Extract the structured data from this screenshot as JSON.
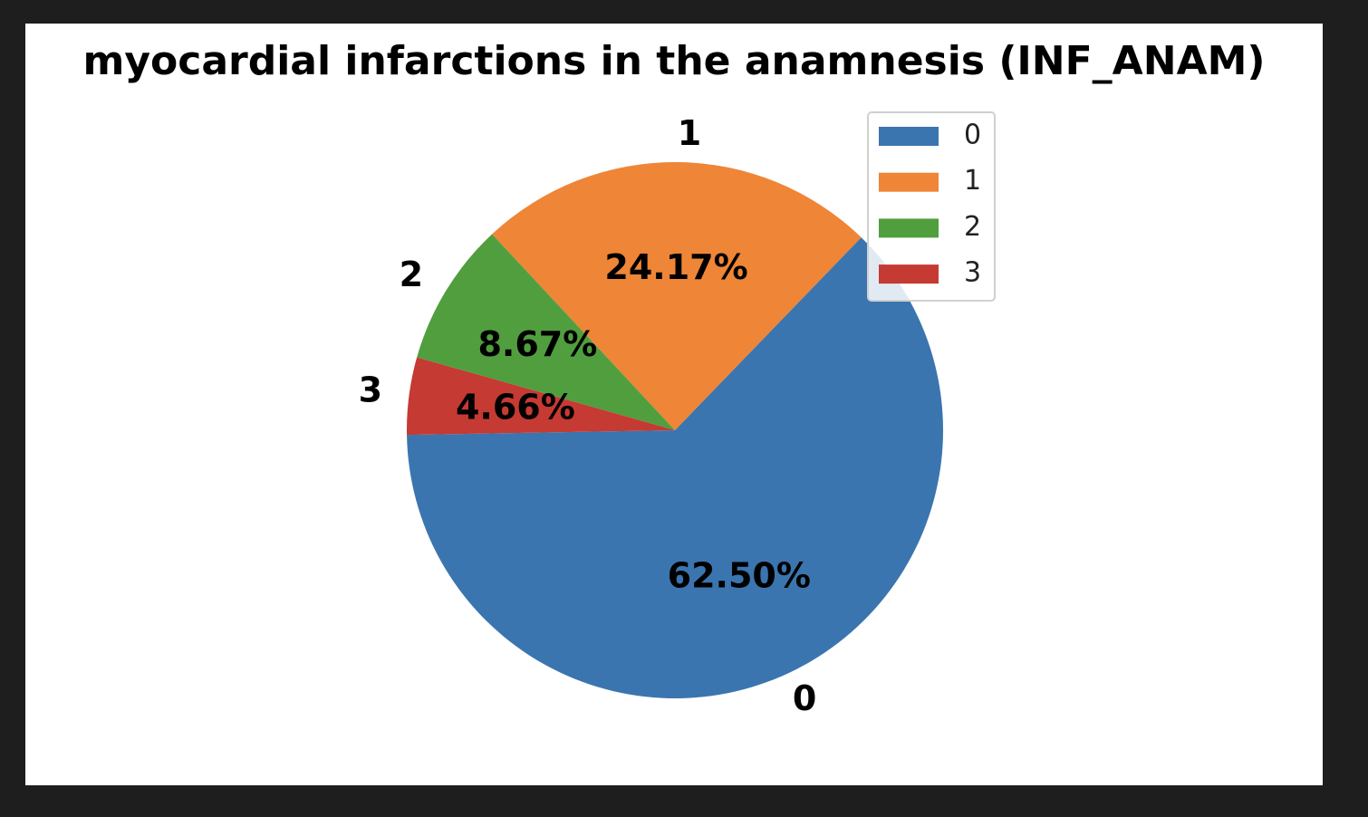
{
  "chart_data": {
    "type": "pie",
    "title": "myocardial infarctions in the anamnesis (INF_ANAM)",
    "categories": [
      "0",
      "1",
      "2",
      "3"
    ],
    "values": [
      62.5,
      24.17,
      8.67,
      4.66
    ],
    "value_labels": [
      "62.50%",
      "24.17%",
      "8.67%",
      "4.66%"
    ],
    "colors": [
      "#3b75af",
      "#ef8536",
      "#519e3e",
      "#c53a32"
    ],
    "legend": "upper right"
  }
}
